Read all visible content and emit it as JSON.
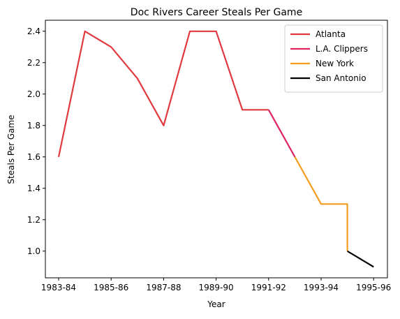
{
  "chart_data": {
    "type": "line",
    "title": "Doc Rivers Career Steals Per Game",
    "xlabel": "Year",
    "ylabel": "Steals Per Game",
    "x_ticks": [
      "1983-84",
      "1985-86",
      "1987-88",
      "1989-90",
      "1991-92",
      "1993-94",
      "1995-96"
    ],
    "y_ticks": [
      "1.0",
      "1.2",
      "1.4",
      "1.6",
      "1.8",
      "2.0",
      "2.2",
      "2.4"
    ],
    "ylim": [
      0.83,
      2.47
    ],
    "grid": false,
    "legend_position": "top-right",
    "series": [
      {
        "name": "Atlanta",
        "color": "#e0393e",
        "points": [
          {
            "x": "1983-84",
            "y": 1.6
          },
          {
            "x": "1984-85",
            "y": 2.4
          },
          {
            "x": "1985-86",
            "y": 2.3
          },
          {
            "x": "1986-87",
            "y": 2.1
          },
          {
            "x": "1987-88",
            "y": 1.8
          },
          {
            "x": "1988-89",
            "y": 2.4
          },
          {
            "x": "1989-90",
            "y": 2.4
          },
          {
            "x": "1990-91",
            "y": 1.9
          },
          {
            "x": "1991-92",
            "y": 1.9
          }
        ]
      },
      {
        "name": "L.A. Clippers",
        "color": "#e0245e",
        "points": [
          {
            "x": "1991-92",
            "y": 1.9
          },
          {
            "x": "1992-93",
            "y": 1.6
          }
        ]
      },
      {
        "name": "New York",
        "color": "#f39c1f",
        "points": [
          {
            "x": "1992-93",
            "y": 1.6
          },
          {
            "x": "1993-94",
            "y": 1.3
          },
          {
            "x": "1994-95",
            "y": 1.3
          },
          {
            "x": "1994-95",
            "y": 1.0
          }
        ]
      },
      {
        "name": "San Antonio",
        "color": "#000000",
        "points": [
          {
            "x": "1994-95",
            "y": 1.0
          },
          {
            "x": "1995-96",
            "y": 0.9
          }
        ]
      }
    ]
  }
}
